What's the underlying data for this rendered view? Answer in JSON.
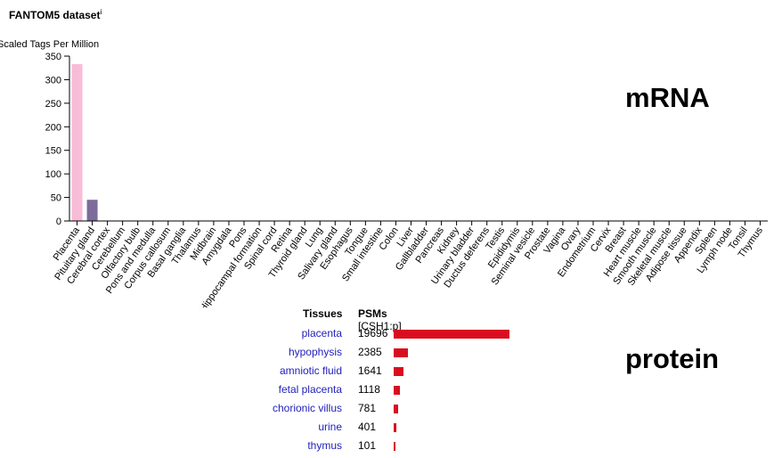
{
  "header": {
    "title": "FANTOM5 dataset",
    "title_sup": "i"
  },
  "labels": {
    "mrna": "mRNA",
    "protein": "protein"
  },
  "chart_data": {
    "type": "bar",
    "ylabel": "Scaled Tags Per Million",
    "ylim": [
      0,
      350
    ],
    "yticks": [
      0,
      50,
      100,
      150,
      200,
      250,
      300,
      350
    ],
    "categories": [
      "Placenta",
      "Pituitary gland",
      "Cerebral cortex",
      "Cerebellum",
      "Olfactory bulb",
      "Pons and medulla",
      "Corpus callosum",
      "Basal ganglia",
      "Thalamus",
      "Midbrain",
      "Amygdala",
      "Pons",
      "Hippocampal formation",
      "Spinal cord",
      "Retina",
      "Thyroid gland",
      "Lung",
      "Salivary gland",
      "Esophagus",
      "Tongue",
      "Small intestine",
      "Colon",
      "Liver",
      "Gallbladder",
      "Pancreas",
      "Kidney",
      "Urinary bladder",
      "Ductus deferens",
      "Testis",
      "Epididymis",
      "Seminal vesicle",
      "Prostate",
      "Vagina",
      "Ovary",
      "Endometrium",
      "Cervix",
      "Breast",
      "Heart muscle",
      "Smooth muscle",
      "Skeletal muscle",
      "Adipose tissue",
      "Appendix",
      "Spleen",
      "Lymph node",
      "Tonsil",
      "Thymus"
    ],
    "values": [
      333,
      45,
      0,
      0,
      0,
      0,
      0,
      0,
      0,
      0,
      0,
      0,
      0,
      0,
      0,
      0,
      0,
      0,
      0,
      0,
      0,
      0,
      0,
      0,
      0,
      0,
      0,
      0,
      0,
      0,
      0,
      0,
      0,
      0,
      0,
      0,
      0,
      0,
      0,
      0,
      0,
      0,
      0,
      0,
      0,
      0
    ],
    "colors": [
      "#f8bbd8",
      "#7d6b9b"
    ]
  },
  "protein_table": {
    "col_tissue": "Tissues",
    "col_psms": "PSMs",
    "col_gene": "[CSH1:p]",
    "bar_color": "#d90d20",
    "rows": [
      {
        "tissue": "placenta",
        "psms": 19696
      },
      {
        "tissue": "hypophysis",
        "psms": 2385
      },
      {
        "tissue": "amniotic fluid",
        "psms": 1641
      },
      {
        "tissue": "fetal placenta",
        "psms": 1118
      },
      {
        "tissue": "chorionic villus",
        "psms": 781
      },
      {
        "tissue": "urine",
        "psms": 401
      },
      {
        "tissue": "thymus",
        "psms": 101
      }
    ]
  }
}
